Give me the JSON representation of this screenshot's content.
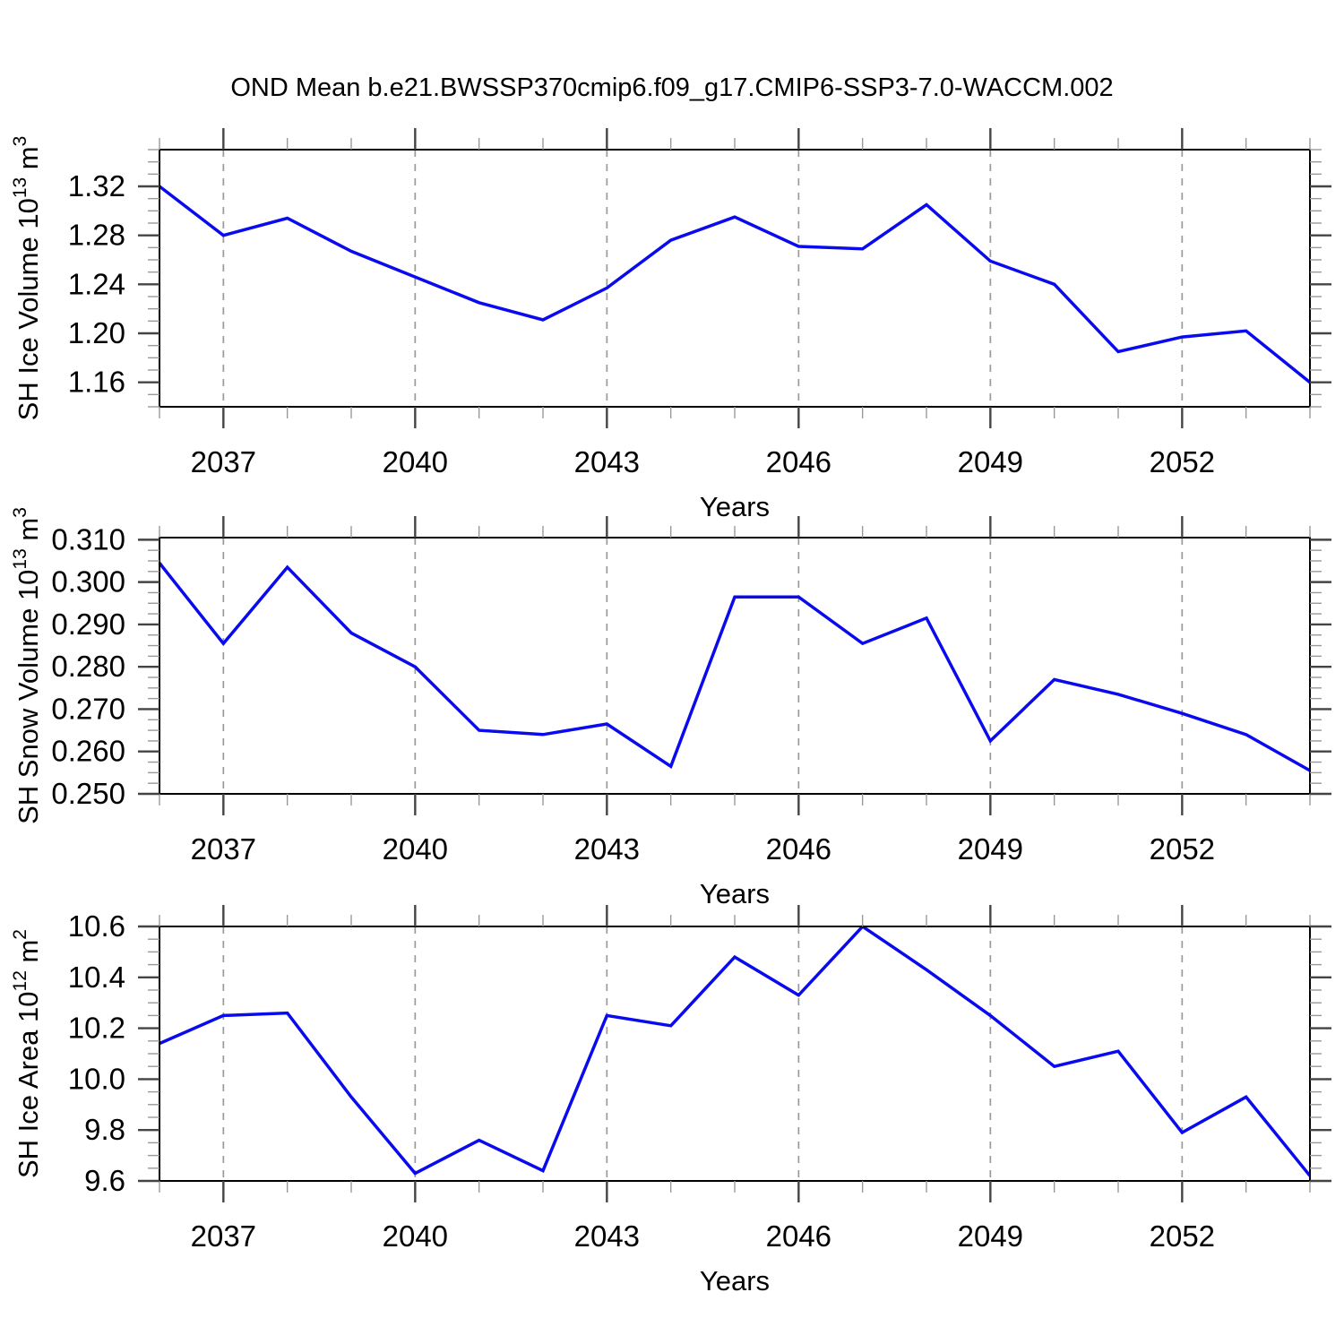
{
  "title": "OND Mean b.e21.BWSSP370cmip6.f09_g17.CMIP6-SSP3-7.0-WACCM.002",
  "style": {
    "line_color": "#0a0aee",
    "grid_color": "#9a9a9a",
    "frame_color": "#000000",
    "major_tick_color": "#444444",
    "minor_tick_color": "#999999",
    "text_color": "#000000"
  },
  "x_axis": {
    "label": "Years",
    "min": 2036,
    "max": 2054,
    "minor_step": 1,
    "major_ticks": [
      2037,
      2040,
      2043,
      2046,
      2049,
      2052
    ],
    "major_labels": [
      "2037",
      "2040",
      "2043",
      "2046",
      "2049",
      "2052"
    ]
  },
  "chart_data": [
    {
      "type": "line",
      "name": "sh-ice-volume",
      "ylabel": "SH Ice Volume 10^13^ m^3^",
      "ymin": 1.14,
      "ymax": 1.35,
      "y_major": [
        1.16,
        1.2,
        1.24,
        1.28,
        1.32
      ],
      "y_major_labels": [
        "1.16",
        "1.20",
        "1.24",
        "1.28",
        "1.32"
      ],
      "y_minor_step": 0.01,
      "xlabel": "Years",
      "x": [
        2036,
        2037,
        2038,
        2039,
        2040,
        2041,
        2042,
        2043,
        2044,
        2045,
        2046,
        2047,
        2048,
        2049,
        2050,
        2051,
        2052,
        2053,
        2054
      ],
      "values": [
        1.32,
        1.28,
        1.294,
        1.267,
        1.246,
        1.225,
        1.211,
        1.237,
        1.276,
        1.295,
        1.271,
        1.269,
        1.305,
        1.259,
        1.24,
        1.185,
        1.197,
        1.202,
        1.16
      ]
    },
    {
      "type": "line",
      "name": "sh-snow-volume",
      "ylabel": "SH Snow Volume 10^13^ m^3^",
      "ymin": 0.25,
      "ymax": 0.3105,
      "y_major": [
        0.25,
        0.26,
        0.27,
        0.28,
        0.29,
        0.3,
        0.31
      ],
      "y_major_labels": [
        "0.250",
        "0.260",
        "0.270",
        "0.280",
        "0.290",
        "0.300",
        "0.310"
      ],
      "y_minor_step": 0.0025,
      "xlabel": "Years",
      "x": [
        2036,
        2037,
        2038,
        2039,
        2040,
        2041,
        2042,
        2043,
        2044,
        2045,
        2046,
        2047,
        2048,
        2049,
        2050,
        2051,
        2052,
        2053,
        2054
      ],
      "values": [
        0.3045,
        0.2855,
        0.3035,
        0.288,
        0.28,
        0.265,
        0.264,
        0.2665,
        0.2565,
        0.2965,
        0.2965,
        0.2855,
        0.2915,
        0.2625,
        0.277,
        0.2735,
        0.269,
        0.264,
        0.2555
      ]
    },
    {
      "type": "line",
      "name": "sh-ice-area",
      "ylabel": "SH Ice Area 10^12^ m^2^",
      "ymin": 9.6,
      "ymax": 10.6,
      "y_major": [
        9.6,
        9.8,
        10.0,
        10.2,
        10.4,
        10.6
      ],
      "y_major_labels": [
        "9.6",
        "9.8",
        "10.0",
        "10.2",
        "10.4",
        "10.6"
      ],
      "y_minor_step": 0.05,
      "xlabel": "Years",
      "x": [
        2036,
        2037,
        2038,
        2039,
        2040,
        2041,
        2042,
        2043,
        2044,
        2045,
        2046,
        2047,
        2048,
        2049,
        2050,
        2051,
        2052,
        2053,
        2054
      ],
      "values": [
        10.14,
        10.25,
        10.26,
        9.93,
        9.63,
        9.76,
        9.64,
        10.25,
        10.21,
        10.48,
        10.33,
        10.6,
        10.43,
        10.25,
        10.05,
        10.11,
        9.79,
        9.93,
        9.62
      ]
    }
  ]
}
